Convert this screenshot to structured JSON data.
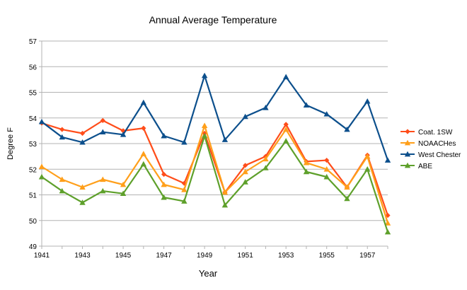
{
  "chart_data": {
    "type": "line",
    "title": "Annual Average Temperature",
    "xlabel": "Year",
    "ylabel": "Degree F",
    "ylim": [
      49,
      57
    ],
    "yticks": [
      "49",
      "50",
      "51",
      "52",
      "53",
      "54",
      "55",
      "56",
      "57"
    ],
    "xlim": [
      1941,
      1958
    ],
    "xticks": [
      "1941",
      "1943",
      "1945",
      "1947",
      "1949",
      "1951",
      "1953",
      "1955",
      "1957"
    ],
    "grid": "horizontal",
    "legend_position": "right",
    "x": [
      1941,
      1942,
      1943,
      1944,
      1945,
      1946,
      1947,
      1948,
      1949,
      1950,
      1951,
      1952,
      1953,
      1954,
      1955,
      1956,
      1957,
      1958
    ],
    "series": [
      {
        "name": "Coat. 1SW",
        "color": "#ff4d1a",
        "marker": "diamond",
        "values": [
          53.8,
          53.55,
          53.4,
          53.9,
          53.5,
          53.6,
          51.8,
          51.45,
          53.4,
          51.1,
          52.15,
          52.5,
          53.75,
          52.3,
          52.35,
          51.3,
          52.55,
          50.2
        ]
      },
      {
        "name": "NOAACHes",
        "color": "#ff9f1a",
        "marker": "triangle",
        "values": [
          52.1,
          51.6,
          51.3,
          51.6,
          51.4,
          52.6,
          51.4,
          51.2,
          53.7,
          51.1,
          51.9,
          52.4,
          53.55,
          52.25,
          52.0,
          51.3,
          52.5,
          49.9
        ]
      },
      {
        "name": "West Chester",
        "color": "#0c4f8c",
        "marker": "triangle",
        "values": [
          53.85,
          53.25,
          53.05,
          53.45,
          53.35,
          54.6,
          53.3,
          53.05,
          55.65,
          53.15,
          54.05,
          54.4,
          55.6,
          54.5,
          54.15,
          53.55,
          54.65,
          52.35
        ]
      },
      {
        "name": "ABE",
        "color": "#5ea02b",
        "marker": "triangle",
        "values": [
          51.7,
          51.15,
          50.7,
          51.15,
          51.05,
          52.2,
          50.9,
          50.75,
          53.3,
          50.6,
          51.5,
          52.05,
          53.1,
          51.9,
          51.7,
          50.85,
          52.0,
          49.55
        ]
      }
    ]
  }
}
